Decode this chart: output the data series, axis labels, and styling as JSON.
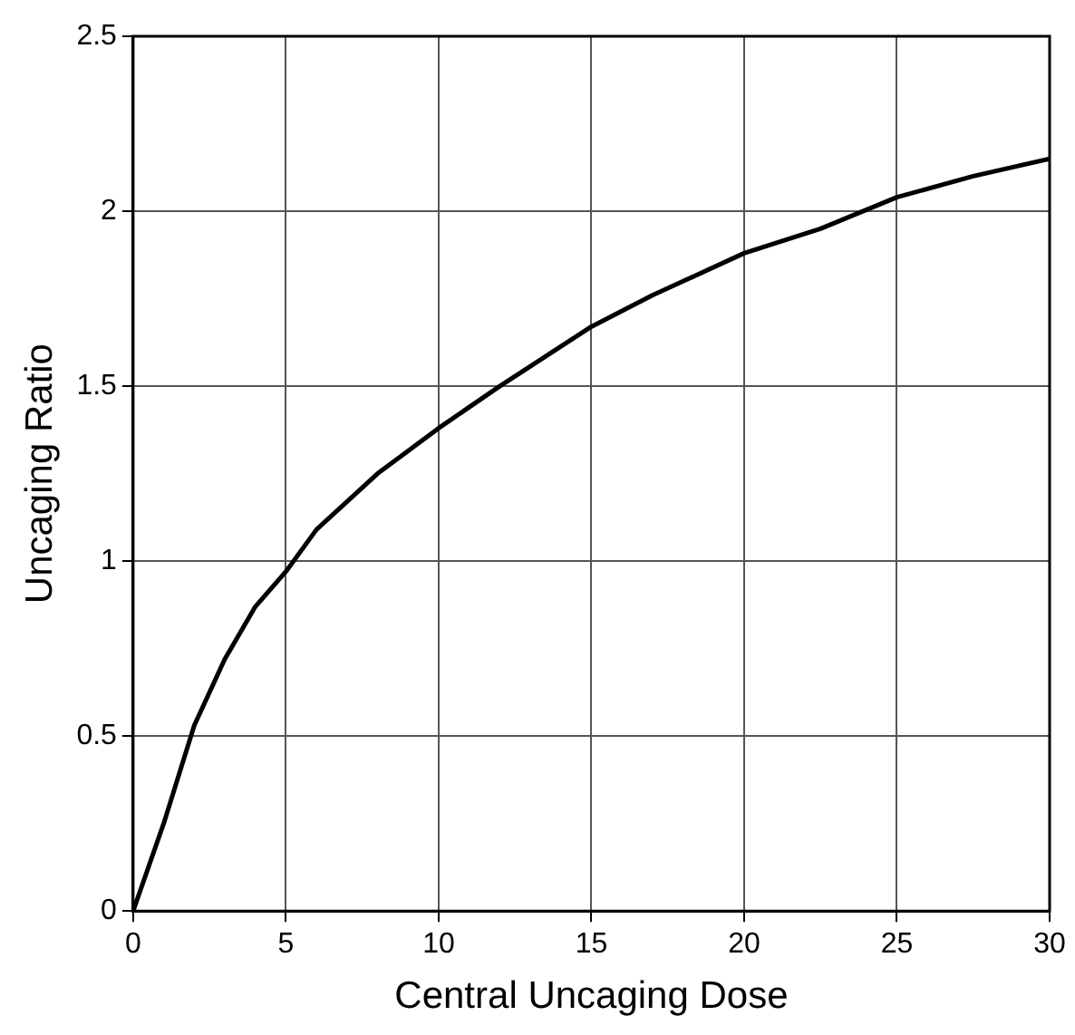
{
  "chart_data": {
    "type": "line",
    "xlabel": "Central Uncaging Dose",
    "ylabel": "Uncaging Ratio",
    "series": [
      {
        "color": "#000000",
        "x": [
          0,
          1,
          2,
          3,
          4,
          5,
          6,
          8,
          10,
          12,
          15,
          17,
          20,
          22.5,
          25,
          27.5,
          30
        ],
        "values": [
          0,
          0.25,
          0.53,
          0.72,
          0.87,
          0.97,
          1.09,
          1.25,
          1.38,
          1.5,
          1.67,
          1.76,
          1.88,
          1.95,
          2.04,
          2.1,
          2.15
        ]
      }
    ],
    "xlim": [
      0,
      30
    ],
    "xticks": [
      0,
      5,
      10,
      15,
      20,
      25,
      30
    ],
    "ylim": [
      0,
      2.5
    ],
    "yticks": [
      0,
      0.5,
      1,
      1.5,
      2,
      2.5
    ],
    "grid": true,
    "legend": false,
    "marker": "none",
    "line_style": "solid"
  }
}
